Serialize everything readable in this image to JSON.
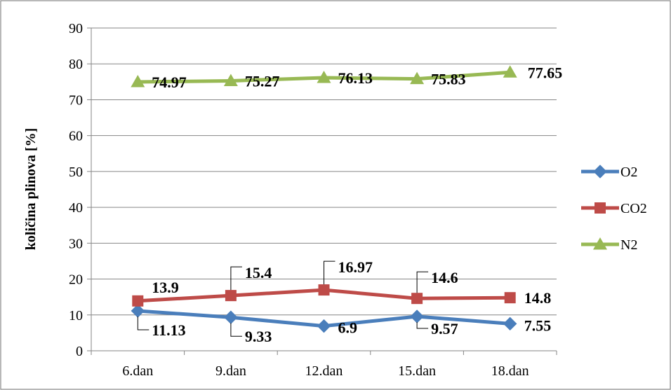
{
  "chart_data": {
    "type": "line",
    "title": "",
    "xlabel": "",
    "ylabel": "količina plinova [%]",
    "ylim": [
      0,
      90
    ],
    "y_ticks": [
      0,
      10,
      20,
      30,
      40,
      50,
      60,
      70,
      80,
      90
    ],
    "grid": "horizontal",
    "legend_position": "right",
    "categories": [
      "6.dan",
      "9.dan",
      "12.dan",
      "15.dan",
      "18.dan"
    ],
    "series": [
      {
        "name": "O2",
        "color": "#4a7ebb",
        "marker": "diamond",
        "values": [
          11.13,
          9.33,
          6.9,
          9.57,
          7.55
        ],
        "labels": [
          "11.13",
          "9.33",
          "6.9",
          "9.57",
          "7.55"
        ]
      },
      {
        "name": "CO2",
        "color": "#be4b48",
        "marker": "square",
        "values": [
          13.9,
          15.4,
          16.97,
          14.6,
          14.8
        ],
        "labels": [
          "13.9",
          "15.4",
          "16.97",
          "14.6",
          "14.8"
        ]
      },
      {
        "name": "N2",
        "color": "#98b954",
        "marker": "triangle",
        "values": [
          74.97,
          75.27,
          76.13,
          75.83,
          77.65
        ],
        "labels": [
          "74.97",
          "75.27",
          "76.13",
          "75.83",
          "77.65"
        ]
      }
    ]
  }
}
